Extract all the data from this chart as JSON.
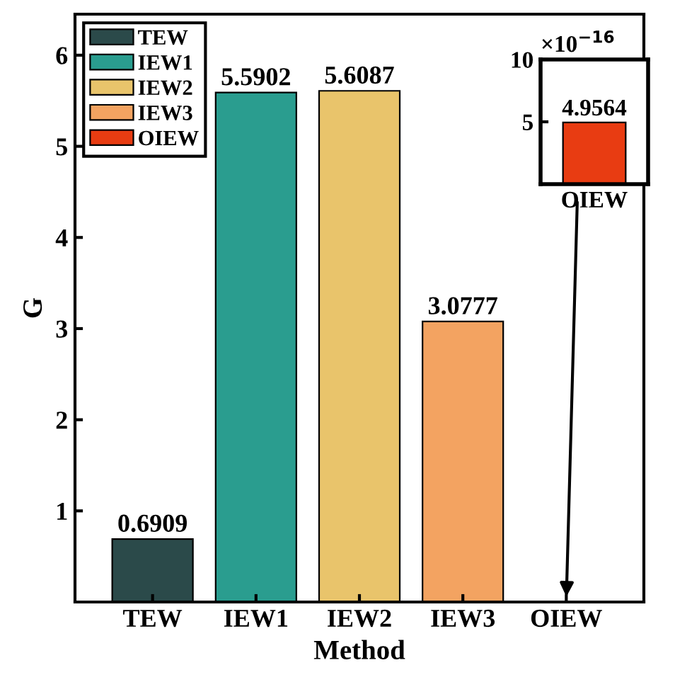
{
  "chart_data": [
    {
      "type": "bar",
      "xlabel": "Method",
      "ylabel": "G",
      "categories": [
        "TEW",
        "IEW1",
        "IEW2",
        "IEW3",
        "OIEW"
      ],
      "series": [
        {
          "name": "TEW",
          "color": "#2b4a4a",
          "values": [
            0.6909,
            null,
            null,
            null,
            null
          ],
          "value_labels": [
            "0.6909",
            null,
            null,
            null,
            null
          ]
        },
        {
          "name": "IEW1",
          "color": "#2a9d8f",
          "values": [
            null,
            5.5902,
            null,
            null,
            null
          ],
          "value_labels": [
            null,
            "5.5902",
            null,
            null,
            null
          ]
        },
        {
          "name": "IEW2",
          "color": "#e9c46b",
          "values": [
            null,
            null,
            5.6087,
            null,
            null
          ],
          "value_labels": [
            null,
            null,
            "5.6087",
            null,
            null
          ]
        },
        {
          "name": "IEW3",
          "color": "#f3a361",
          "values": [
            null,
            null,
            null,
            3.0777,
            null
          ],
          "value_labels": [
            null,
            null,
            null,
            "3.0777",
            null
          ]
        },
        {
          "name": "OIEW",
          "color": "#e83c12",
          "values": [
            null,
            null,
            null,
            null,
            0
          ]
        }
      ],
      "ylim": [
        0,
        6.45
      ],
      "yticks": [
        1,
        2,
        3,
        4,
        5,
        6
      ],
      "legend": "top left",
      "grid": false
    },
    {
      "type": "bar",
      "categories": [
        "OIEW"
      ],
      "series": [
        {
          "color": "#e83c12",
          "values": [
            4.9564
          ]
        }
      ],
      "data_labels": true,
      "ylim": [
        0,
        10
      ],
      "yticks": [
        5,
        10
      ],
      "annotations": [
        "×10$^{−16}$"
      ]
    }
  ]
}
